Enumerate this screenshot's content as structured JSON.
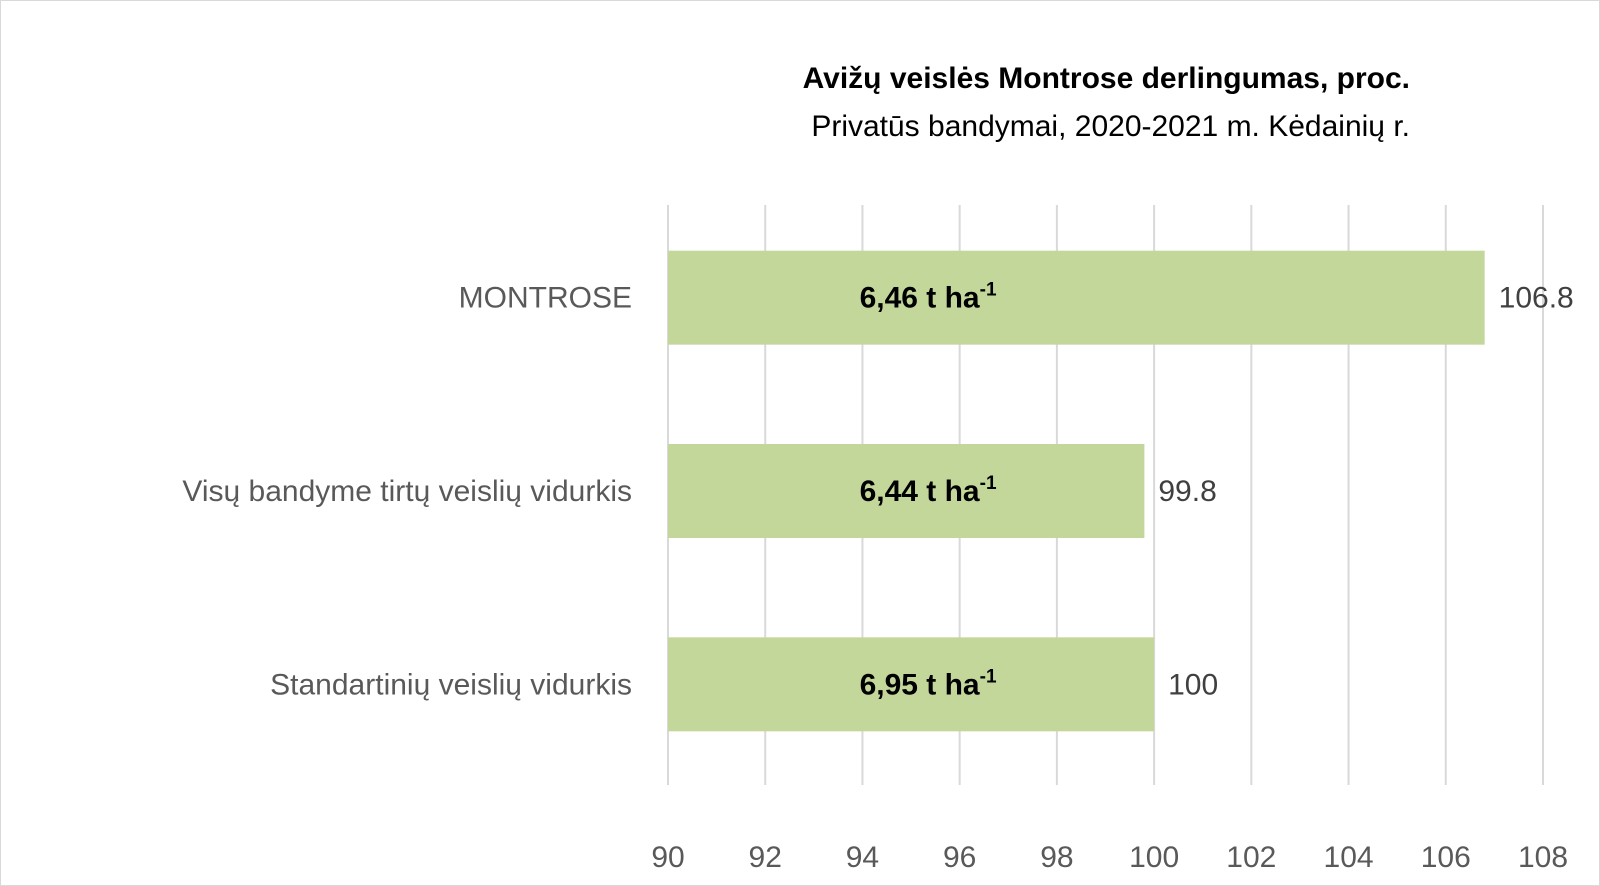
{
  "chart_data": {
    "type": "bar",
    "orientation": "horizontal",
    "title": {
      "bold": "Avižų veislės Montrose derlingumas",
      "rest": ", proc.",
      "subtitle": "Privatūs bandymai, 2020-2021 m. Kėdainių r."
    },
    "categories": [
      "MONTROSE",
      "Visų bandyme tirtų veislių vidurkis",
      "Standartinių veislių vidurkis"
    ],
    "values": [
      106.8,
      99.8,
      100
    ],
    "value_labels": [
      "106.8",
      "99.8",
      "100"
    ],
    "bar_annotations": [
      {
        "main": "6,46 t ha",
        "sup": "-1"
      },
      {
        "main": "6,44 t ha",
        "sup": "-1"
      },
      {
        "main": "6,95 t ha",
        "sup": "-1"
      }
    ],
    "xlim": [
      90,
      108
    ],
    "xticks": [
      "90",
      "92",
      "94",
      "96",
      "98",
      "100",
      "102",
      "104",
      "106",
      "108"
    ],
    "grid": "vertical",
    "bar_color": "#c4d79b",
    "grid_color": "#d9d9d9"
  }
}
